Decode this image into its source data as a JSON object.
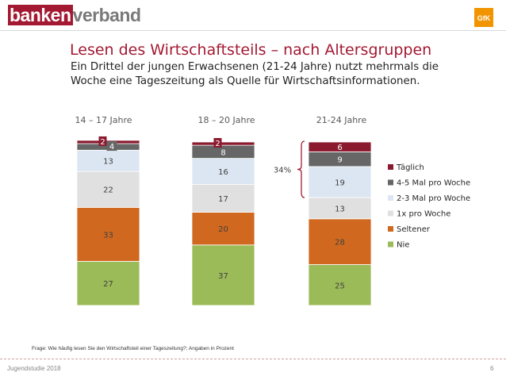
{
  "header": {
    "logo_part1": "banken",
    "logo_part2": "verband",
    "gfk_logo": "GfK"
  },
  "title": "Lesen des Wirtschaftsteils – nach Altersgruppen",
  "subtitle_line1": "Ein Drittel der jungen Erwachsenen (21-24 Jahre) nutzt mehrmals die",
  "subtitle_line2": "Woche eine Tageszeitung als Quelle für Wirtschaftsinformationen.",
  "footnote": "Frage: Wie häufig lesen Sie den Wirtschaftsteil einer Tageszeitung?; Angaben in Prozent",
  "footer": {
    "left": "Jugendstudie 2018",
    "page": "6"
  },
  "colors": {
    "Nie": "#9bbb59",
    "Seltener": "#d0691f",
    "1x pro Woche": "#e0e0e0",
    "2-3 Mal pro Woche": "#dce6f2",
    "4-5 Mal pro Woche": "#666666",
    "Täglich": "#8b1a2f"
  },
  "chart_data": {
    "type": "bar",
    "stacked": true,
    "categories": [
      "14 – 17 Jahre",
      "18 – 20 Jahre",
      "21-24 Jahre"
    ],
    "series": [
      {
        "name": "Nie",
        "values": [
          27,
          37,
          25
        ]
      },
      {
        "name": "Seltener",
        "values": [
          33,
          20,
          28
        ]
      },
      {
        "name": "1x pro Woche",
        "values": [
          22,
          17,
          13
        ]
      },
      {
        "name": "2-3 Mal pro Woche",
        "values": [
          13,
          16,
          19
        ]
      },
      {
        "name": "4-5 Mal pro Woche",
        "values": [
          4,
          8,
          9
        ]
      },
      {
        "name": "Täglich",
        "values": [
          2,
          2,
          6
        ]
      }
    ],
    "legend": [
      "Täglich",
      "4-5 Mal pro Woche",
      "2-3 Mal pro Woche",
      "1x pro Woche",
      "Seltener",
      "Nie"
    ],
    "legend_position": "right",
    "annotation": {
      "text": "34%",
      "category": "21-24 Jahre",
      "spans": [
        "Täglich",
        "4-5 Mal pro Woche",
        "2-3 Mal pro Woche"
      ]
    },
    "ylim": [
      0,
      100
    ]
  }
}
